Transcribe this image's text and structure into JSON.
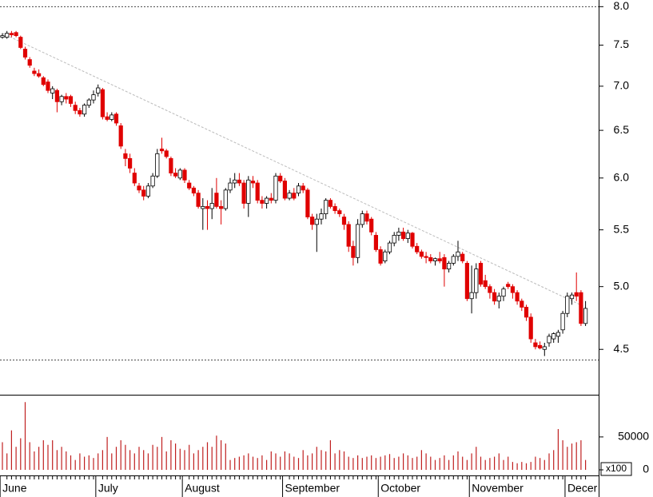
{
  "chart_data": {
    "type": "candlestick",
    "categories": [
      "June",
      null,
      null,
      null,
      null,
      null,
      null,
      null,
      null,
      null,
      null,
      null,
      null,
      null,
      null,
      null,
      null,
      null,
      null,
      null,
      null,
      "July",
      null,
      null,
      null,
      null,
      null,
      null,
      null,
      null,
      null,
      null,
      null,
      null,
      null,
      null,
      null,
      null,
      null,
      null,
      "August",
      null,
      null,
      null,
      null,
      null,
      null,
      null,
      null,
      null,
      null,
      null,
      null,
      null,
      null,
      null,
      null,
      null,
      null,
      null,
      null,
      null,
      "September",
      null,
      null,
      null,
      null,
      null,
      null,
      null,
      null,
      null,
      null,
      null,
      null,
      null,
      null,
      null,
      null,
      null,
      null,
      null,
      null,
      "October",
      null,
      null,
      null,
      null,
      null,
      null,
      null,
      null,
      null,
      null,
      null,
      null,
      null,
      null,
      null,
      null,
      null,
      null,
      null,
      "November",
      null,
      null,
      null,
      null,
      null,
      null,
      null,
      null,
      null,
      null,
      null,
      null,
      null,
      null,
      null,
      null,
      null,
      null,
      null,
      null,
      "Decer",
      null,
      null,
      null,
      null
    ],
    "ohlc": [
      [
        7.6,
        7.65,
        7.58,
        7.62
      ],
      [
        7.6,
        7.68,
        7.58,
        7.65
      ],
      [
        7.65,
        7.68,
        7.6,
        7.63
      ],
      [
        7.66,
        7.68,
        7.6,
        7.62
      ],
      [
        7.6,
        7.62,
        7.45,
        7.47
      ],
      [
        7.45,
        7.48,
        7.32,
        7.35
      ],
      [
        7.32,
        7.35,
        7.22,
        7.25
      ],
      [
        7.18,
        7.22,
        7.12,
        7.15
      ],
      [
        7.15,
        7.2,
        7.1,
        7.12
      ],
      [
        7.1,
        7.12,
        7.0,
        7.02
      ],
      [
        7.05,
        7.08,
        6.92,
        6.95
      ],
      [
        6.92,
        7.0,
        6.85,
        6.97
      ],
      [
        6.95,
        6.97,
        6.7,
        6.82
      ],
      [
        6.82,
        6.9,
        6.78,
        6.88
      ],
      [
        6.88,
        6.92,
        6.8,
        6.85
      ],
      [
        6.88,
        6.9,
        6.76,
        6.8
      ],
      [
        6.78,
        6.82,
        6.68,
        6.72
      ],
      [
        6.72,
        6.75,
        6.65,
        6.68
      ],
      [
        6.68,
        6.8,
        6.65,
        6.78
      ],
      [
        6.78,
        6.86,
        6.75,
        6.84
      ],
      [
        6.84,
        6.95,
        6.8,
        6.9
      ],
      [
        6.92,
        7.02,
        6.88,
        6.98
      ],
      [
        6.96,
        6.98,
        6.62,
        6.65
      ],
      [
        6.65,
        6.7,
        6.6,
        6.62
      ],
      [
        6.62,
        6.7,
        6.6,
        6.67
      ],
      [
        6.68,
        6.7,
        6.55,
        6.58
      ],
      [
        6.55,
        6.58,
        6.3,
        6.33
      ],
      [
        6.25,
        6.3,
        6.12,
        6.2
      ],
      [
        6.2,
        6.25,
        6.05,
        6.1
      ],
      [
        6.05,
        6.1,
        5.92,
        5.95
      ],
      [
        5.92,
        5.95,
        5.85,
        5.88
      ],
      [
        5.88,
        5.92,
        5.78,
        5.82
      ],
      [
        5.82,
        5.95,
        5.8,
        5.92
      ],
      [
        5.92,
        6.05,
        5.9,
        6.02
      ],
      [
        6.02,
        6.3,
        6.0,
        6.25
      ],
      [
        6.3,
        6.42,
        6.25,
        6.28
      ],
      [
        6.28,
        6.3,
        6.2,
        6.22
      ],
      [
        6.2,
        6.22,
        6.02,
        6.05
      ],
      [
        6.05,
        6.1,
        6.0,
        6.02
      ],
      [
        6.0,
        6.1,
        5.98,
        6.08
      ],
      [
        6.08,
        6.1,
        5.95,
        5.98
      ],
      [
        5.95,
        5.98,
        5.88,
        5.9
      ],
      [
        5.9,
        5.92,
        5.82,
        5.85
      ],
      [
        5.85,
        5.88,
        5.7,
        5.72
      ],
      [
        5.7,
        5.8,
        5.5,
        5.72
      ],
      [
        5.72,
        5.78,
        5.5,
        5.7
      ],
      [
        5.7,
        5.9,
        5.6,
        5.75
      ],
      [
        5.85,
        6.0,
        5.7,
        5.72
      ],
      [
        5.72,
        5.78,
        5.55,
        5.7
      ],
      [
        5.7,
        5.9,
        5.68,
        5.88
      ],
      [
        5.88,
        6.0,
        5.85,
        5.95
      ],
      [
        5.95,
        6.05,
        5.9,
        5.98
      ],
      [
        5.98,
        6.05,
        5.92,
        5.95
      ],
      [
        5.95,
        5.98,
        5.7,
        5.75
      ],
      [
        5.75,
        6.02,
        5.62,
        5.98
      ],
      [
        5.97,
        6.02,
        5.9,
        5.95
      ],
      [
        5.95,
        5.98,
        5.75,
        5.78
      ],
      [
        5.78,
        5.82,
        5.7,
        5.75
      ],
      [
        5.75,
        5.82,
        5.7,
        5.8
      ],
      [
        5.8,
        5.85,
        5.75,
        5.78
      ],
      [
        5.78,
        6.05,
        5.75,
        6.02
      ],
      [
        6.02,
        6.05,
        5.95,
        5.97
      ],
      [
        5.97,
        6.0,
        5.78,
        5.8
      ],
      [
        5.8,
        5.88,
        5.78,
        5.85
      ],
      [
        5.85,
        5.9,
        5.78,
        5.8
      ],
      [
        5.85,
        5.95,
        5.82,
        5.92
      ],
      [
        5.92,
        5.95,
        5.85,
        5.88
      ],
      [
        5.88,
        5.9,
        5.6,
        5.62
      ],
      [
        5.62,
        5.65,
        5.5,
        5.55
      ],
      [
        5.55,
        5.65,
        5.3,
        5.6
      ],
      [
        5.6,
        5.7,
        5.55,
        5.65
      ],
      [
        5.65,
        5.8,
        5.6,
        5.78
      ],
      [
        5.78,
        5.8,
        5.7,
        5.72
      ],
      [
        5.72,
        5.75,
        5.65,
        5.68
      ],
      [
        5.68,
        5.7,
        5.62,
        5.65
      ],
      [
        5.62,
        5.65,
        5.5,
        5.55
      ],
      [
        5.55,
        5.58,
        5.3,
        5.35
      ],
      [
        5.35,
        5.4,
        5.18,
        5.25
      ],
      [
        5.25,
        5.6,
        5.2,
        5.55
      ],
      [
        5.55,
        5.68,
        5.52,
        5.65
      ],
      [
        5.65,
        5.68,
        5.55,
        5.58
      ],
      [
        5.6,
        5.62,
        5.45,
        5.48
      ],
      [
        5.45,
        5.48,
        5.3,
        5.32
      ],
      [
        5.32,
        5.35,
        5.18,
        5.2
      ],
      [
        5.22,
        5.32,
        5.2,
        5.3
      ],
      [
        5.3,
        5.4,
        5.28,
        5.38
      ],
      [
        5.38,
        5.48,
        5.35,
        5.45
      ],
      [
        5.45,
        5.52,
        5.4,
        5.48
      ],
      [
        5.48,
        5.52,
        5.4,
        5.42
      ],
      [
        5.42,
        5.5,
        5.38,
        5.47
      ],
      [
        5.47,
        5.48,
        5.33,
        5.35
      ],
      [
        5.35,
        5.38,
        5.28,
        5.3
      ],
      [
        5.3,
        5.32,
        5.24,
        5.26
      ],
      [
        5.26,
        5.3,
        5.2,
        5.25
      ],
      [
        5.25,
        5.28,
        5.2,
        5.22
      ],
      [
        5.22,
        5.25,
        5.18,
        5.24
      ],
      [
        5.24,
        5.3,
        5.2,
        5.22
      ],
      [
        5.25,
        5.28,
        5.0,
        5.15
      ],
      [
        5.15,
        5.22,
        5.12,
        5.2
      ],
      [
        5.2,
        5.28,
        5.18,
        5.26
      ],
      [
        5.26,
        5.4,
        5.22,
        5.3
      ],
      [
        5.28,
        5.3,
        5.2,
        5.22
      ],
      [
        5.2,
        5.22,
        4.88,
        4.9
      ],
      [
        4.9,
        5.18,
        4.78,
        4.95
      ],
      [
        4.95,
        5.2,
        4.9,
        5.15
      ],
      [
        5.2,
        5.22,
        5.0,
        5.02
      ],
      [
        5.05,
        5.1,
        4.98,
        5.0
      ],
      [
        5.0,
        5.02,
        4.9,
        4.95
      ],
      [
        4.95,
        4.98,
        4.85,
        4.88
      ],
      [
        4.88,
        4.95,
        4.82,
        4.92
      ],
      [
        4.92,
        5.0,
        4.88,
        4.98
      ],
      [
        5.02,
        5.04,
        4.98,
        5.0
      ],
      [
        5.0,
        5.02,
        4.9,
        4.95
      ],
      [
        4.95,
        4.97,
        4.85,
        4.88
      ],
      [
        4.88,
        4.9,
        4.8,
        4.83
      ],
      [
        4.83,
        4.85,
        4.72,
        4.75
      ],
      [
        4.75,
        4.78,
        4.55,
        4.58
      ],
      [
        4.55,
        4.58,
        4.5,
        4.52
      ],
      [
        4.53,
        4.56,
        4.5,
        4.51
      ],
      [
        4.5,
        4.55,
        4.45,
        4.52
      ],
      [
        4.55,
        4.62,
        4.52,
        4.6
      ],
      [
        4.58,
        4.63,
        4.55,
        4.62
      ],
      [
        4.6,
        4.65,
        4.55,
        4.63
      ],
      [
        4.65,
        4.8,
        4.62,
        4.78
      ],
      [
        4.78,
        4.95,
        4.75,
        4.92
      ],
      [
        4.9,
        4.95,
        4.85,
        4.93
      ],
      [
        4.95,
        5.12,
        4.88,
        4.92
      ],
      [
        4.95,
        4.97,
        4.68,
        4.7
      ],
      [
        4.7,
        4.88,
        4.68,
        4.82
      ]
    ],
    "volume": [
      42000,
      25000,
      60000,
      35000,
      48000,
      103000,
      42000,
      28000,
      35000,
      45000,
      38000,
      45000,
      30000,
      35000,
      28000,
      22000,
      15000,
      25000,
      20000,
      22000,
      18000,
      25000,
      30000,
      50000,
      25000,
      35000,
      45000,
      38000,
      30000,
      25000,
      35000,
      30000,
      25000,
      38000,
      35000,
      50000,
      28000,
      45000,
      40000,
      32000,
      30000,
      38000,
      25000,
      30000,
      35000,
      42000,
      35000,
      52000,
      45000,
      40000,
      15000,
      18000,
      20000,
      22000,
      25000,
      20000,
      18000,
      22000,
      15000,
      28000,
      25000,
      20000,
      28000,
      25000,
      20000,
      18000,
      30000,
      22000,
      25000,
      35000,
      30000,
      28000,
      45000,
      25000,
      30000,
      28000,
      20000,
      18000,
      22000,
      18000,
      20000,
      22000,
      18000,
      20000,
      22000,
      24000,
      18000,
      20000,
      25000,
      22000,
      18000,
      20000,
      30000,
      25000,
      20000,
      15000,
      18000,
      22000,
      15000,
      22000,
      28000,
      20000,
      15000,
      25000,
      35000,
      20000,
      15000,
      18000,
      20000,
      25000,
      15000,
      20000,
      12000,
      10000,
      12000,
      10000,
      12000,
      20000,
      18000,
      15000,
      25000,
      30000,
      62000,
      45000,
      35000,
      40000,
      42000,
      45000,
      15000
    ],
    "up_color": "#ffffff",
    "down_color": "#e00000",
    "volume_color": "#c02020",
    "log": true,
    "ylim": [
      4.17,
      8.09
    ],
    "yticks": [
      {
        "value": 4.5,
        "label": "4.5"
      },
      {
        "value": 5,
        "label": "5.0"
      },
      {
        "value": 5.5,
        "label": "5.5"
      },
      {
        "value": 6,
        "label": "6.0"
      },
      {
        "value": 6.5,
        "label": "6.5"
      },
      {
        "value": 7,
        "label": "7.0"
      },
      {
        "value": 7.5,
        "label": "7.5"
      },
      {
        "value": 8,
        "label": "8.0"
      }
    ],
    "levels": [
      8.0,
      4.42
    ],
    "trendline": {
      "from": [
        0,
        7.65
      ],
      "to": [
        128,
        4.83
      ]
    },
    "volume_ylim": [
      0,
      113000
    ],
    "volume_yticks": [
      0,
      50000
    ],
    "volume_unit": "x100"
  }
}
